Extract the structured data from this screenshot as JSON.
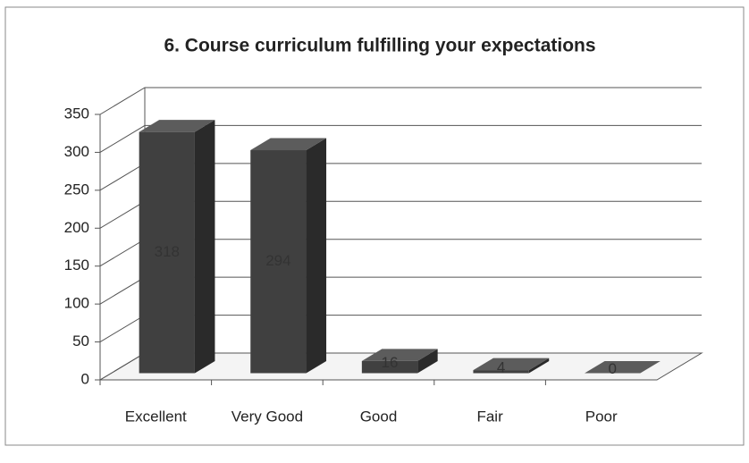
{
  "chart_data": {
    "type": "bar",
    "title": "6. Course curriculum fulfilling your expectations",
    "categories": [
      "Excellent",
      "Very Good",
      "Good",
      "Fair",
      "Poor"
    ],
    "values": [
      318,
      294,
      16,
      4,
      0
    ],
    "color": "#404040",
    "ylim": [
      0,
      350
    ],
    "yticks": [
      0,
      50,
      100,
      150,
      200,
      250,
      300,
      350
    ],
    "grid": true
  }
}
